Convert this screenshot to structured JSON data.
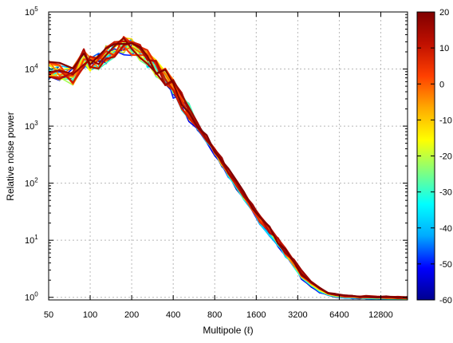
{
  "chart_data": {
    "type": "line",
    "xlabel": "Multipole (ℓ)",
    "ylabel": "Relative noise power",
    "x_scale": "log2",
    "y_scale": "log10",
    "xlim": [
      50,
      20000
    ],
    "ylim": [
      0.9,
      100000
    ],
    "x_ticks": [
      50,
      100,
      200,
      400,
      800,
      1600,
      3200,
      6400,
      12800
    ],
    "x_tick_labels": [
      "50",
      "100",
      "200",
      "400",
      "800",
      "1600",
      "3200",
      "6400",
      "12800"
    ],
    "y_ticks": [
      1,
      10,
      100,
      1000,
      10000,
      100000
    ],
    "y_tick_labels": [
      {
        "base": "10",
        "exp": "0"
      },
      {
        "base": "10",
        "exp": "1"
      },
      {
        "base": "10",
        "exp": "2"
      },
      {
        "base": "10",
        "exp": "3"
      },
      {
        "base": "10",
        "exp": "4"
      },
      {
        "base": "10",
        "exp": "5"
      }
    ],
    "grid": true,
    "colorbar": {
      "min": -60,
      "max": 20,
      "ticks": [
        20,
        10,
        0,
        -10,
        -20,
        -30,
        -40,
        -50,
        -60
      ],
      "tick_labels": [
        "20",
        "10",
        "0",
        "-10",
        "-20",
        "-30",
        "-40",
        "-50",
        "-60"
      ],
      "colormap": [
        "#00008f",
        "#0000ff",
        "#00aaff",
        "#00ffff",
        "#80ff80",
        "#ffff00",
        "#ffaa00",
        "#ff4000",
        "#c01000",
        "#800000"
      ]
    },
    "series_count": 24,
    "envelope": {
      "x": [
        50,
        60,
        75,
        90,
        100,
        115,
        130,
        150,
        175,
        200,
        230,
        260,
        300,
        350,
        400,
        460,
        520,
        600,
        700,
        800,
        900,
        1000,
        1150,
        1300,
        1500,
        1700,
        2000,
        2300,
        2600,
        3000,
        3400,
        4000,
        4600,
        5300,
        6000,
        7000,
        8000,
        9000,
        10000,
        12000,
        14000,
        17000,
        20000
      ],
      "y": [
        10000,
        9000,
        7500,
        15000,
        13000,
        14000,
        18000,
        22000,
        26000,
        24000,
        20000,
        15000,
        10000,
        7000,
        4500,
        2800,
        1800,
        1000,
        600,
        360,
        230,
        150,
        95,
        60,
        36,
        22,
        14,
        9,
        6,
        3.8,
        2.5,
        1.7,
        1.35,
        1.15,
        1.07,
        1.03,
        1.01,
        1.0,
        1.0,
        0.98,
        0.97,
        0.96,
        0.96
      ]
    }
  }
}
